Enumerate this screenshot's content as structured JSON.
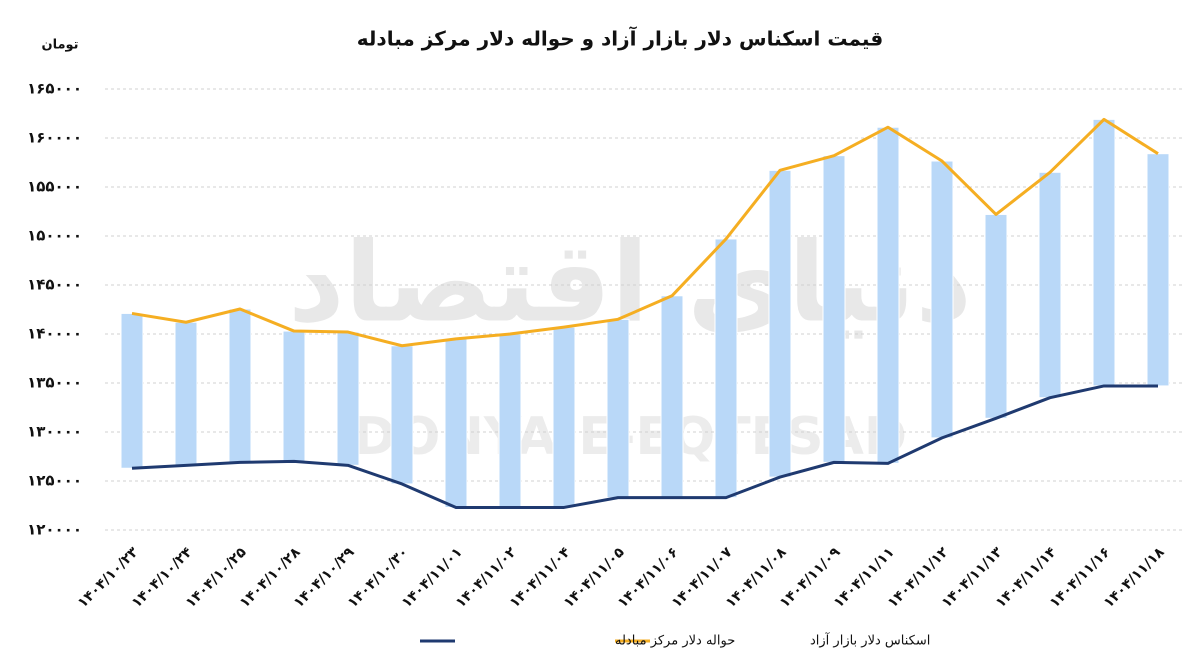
{
  "chart_data": {
    "type": "line",
    "title": "قیمت اسکناس دلار بازار آزاد و حواله دلار مرکز مبادله",
    "y_unit": "تومان",
    "watermark": "DONYA-E-EQTESAD",
    "watermark_fa": "دنیای اقتصاد",
    "categories": [
      "۱۴۰۴/۱۰/۲۳",
      "۱۴۰۴/۱۰/۲۴",
      "۱۴۰۴/۱۰/۲۵",
      "۱۴۰۴/۱۰/۲۸",
      "۱۴۰۴/۱۰/۲۹",
      "۱۴۰۴/۱۰/۳۰",
      "۱۴۰۴/۱۱/۰۱",
      "۱۴۰۴/۱۱/۰۲",
      "۱۴۰۴/۱۱/۰۴",
      "۱۴۰۴/۱۱/۰۵",
      "۱۴۰۴/۱۱/۰۶",
      "۱۴۰۴/۱۱/۰۷",
      "۱۴۰۴/۱۱/۰۸",
      "۱۴۰۴/۱۱/۰۹",
      "۱۴۰۴/۱۱/۱۱",
      "۱۴۰۴/۱۱/۱۲",
      "۱۴۰۴/۱۱/۱۳",
      "۱۴۰۴/۱۱/۱۴",
      "۱۴۰۴/۱۱/۱۶",
      "۱۴۰۴/۱۱/۱۸"
    ],
    "series": [
      {
        "name": "اسکناس دلار بازار آزاد",
        "color": "#f5ae22",
        "values": [
          142100,
          141200,
          142550,
          140300,
          140200,
          138800,
          139500,
          140000,
          140700,
          141500,
          143900,
          149700,
          156700,
          158200,
          161100,
          157650,
          152200,
          156500,
          161900,
          158400
        ]
      },
      {
        "name": "حواله دلار مرکز مبادله",
        "color": "#1f3a70",
        "values": [
          126300,
          126600,
          126900,
          127000,
          126600,
          124700,
          122300,
          122300,
          122300,
          123300,
          123300,
          123300,
          125400,
          126900,
          126800,
          129400,
          131400,
          133500,
          134700,
          134700
        ]
      }
    ],
    "range_bar_color": "#b9d8f8",
    "ylim": [
      120000,
      165000
    ],
    "yticks": [
      {
        "value": 120000,
        "label": "۱۲۰۰۰۰"
      },
      {
        "value": 125000,
        "label": "۱۲۵۰۰۰"
      },
      {
        "value": 130000,
        "label": "۱۳۰۰۰۰"
      },
      {
        "value": 135000,
        "label": "۱۳۵۰۰۰"
      },
      {
        "value": 140000,
        "label": "۱۴۰۰۰۰"
      },
      {
        "value": 145000,
        "label": "۱۴۵۰۰۰"
      },
      {
        "value": 150000,
        "label": "۱۵۰۰۰۰"
      },
      {
        "value": 155000,
        "label": "۱۵۵۰۰۰"
      },
      {
        "value": 160000,
        "label": "۱۶۰۰۰۰"
      },
      {
        "value": 165000,
        "label": "۱۶۵۰۰۰"
      }
    ],
    "grid": true
  }
}
